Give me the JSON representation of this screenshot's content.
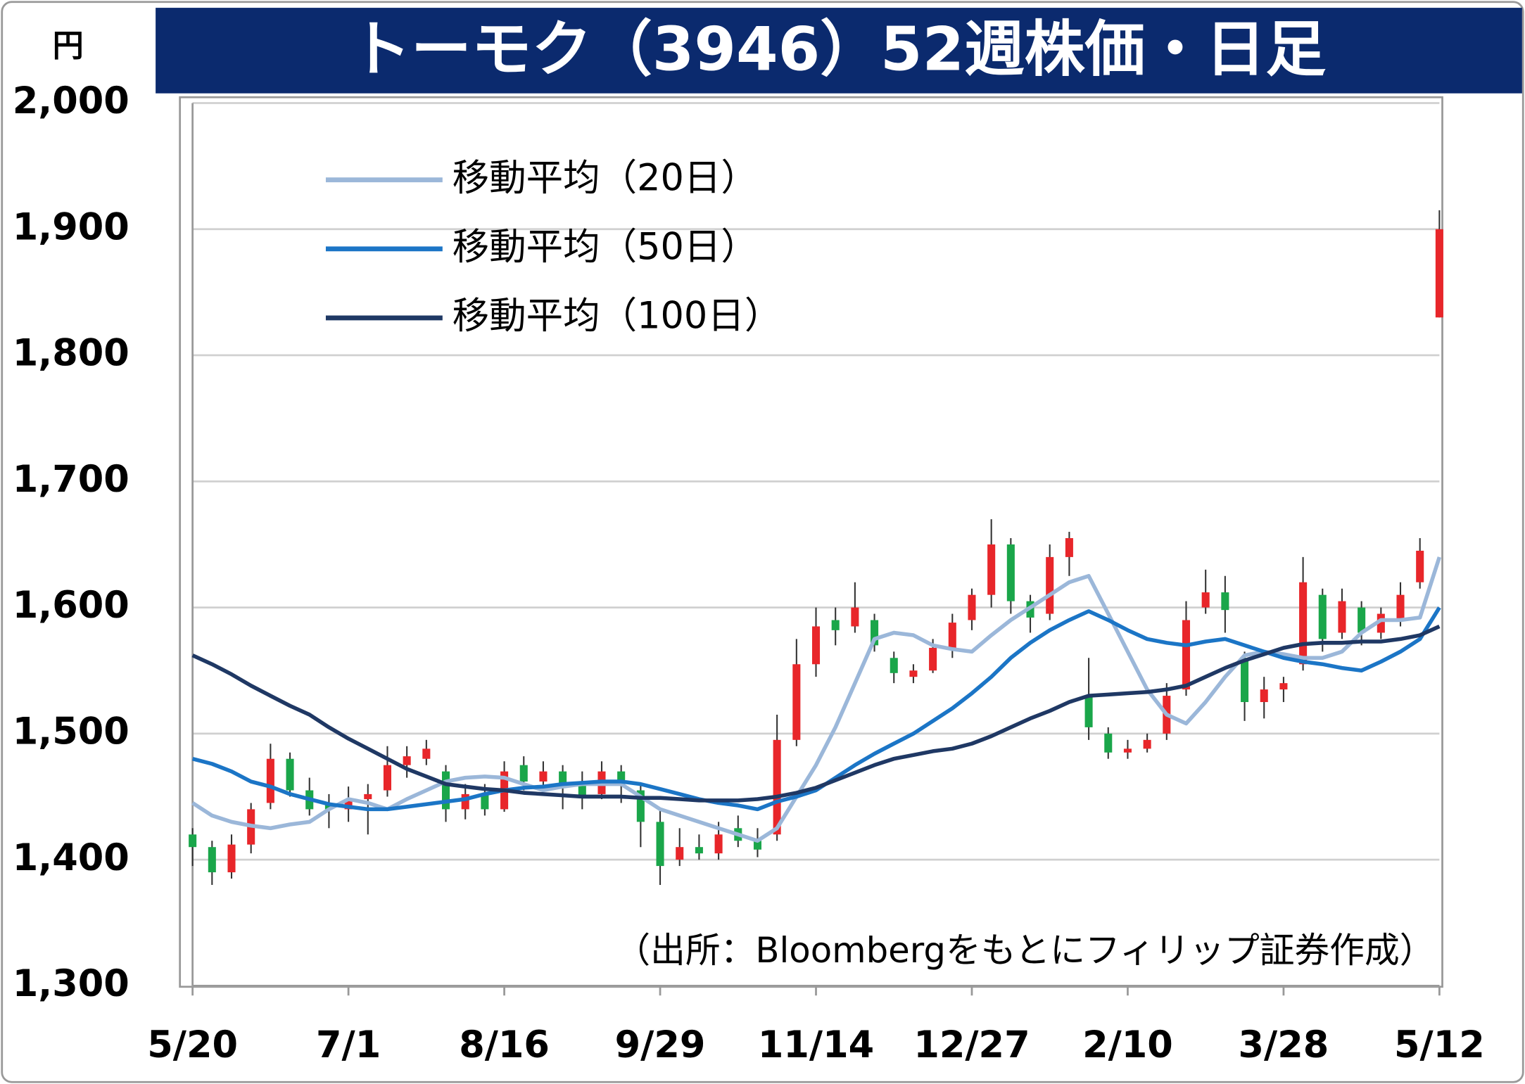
{
  "chart_data": {
    "type": "candlestick",
    "title": "トーモク（3946）52週株価・日足",
    "y_unit": "円",
    "source": "（出所：Bloombergをもとにフィリップ証券作成）",
    "categories": [
      "5/20",
      null,
      null,
      null,
      null,
      null,
      null,
      null,
      "7/1",
      null,
      null,
      null,
      null,
      null,
      null,
      null,
      "8/16",
      null,
      null,
      null,
      null,
      null,
      null,
      null,
      "9/29",
      null,
      null,
      null,
      null,
      null,
      null,
      null,
      "11/14",
      null,
      null,
      null,
      null,
      null,
      null,
      null,
      "12/27",
      null,
      null,
      null,
      null,
      null,
      null,
      null,
      "2/10",
      null,
      null,
      null,
      null,
      null,
      null,
      null,
      "3/28",
      null,
      null,
      null,
      null,
      null,
      null,
      null,
      "5/12"
    ],
    "open": [
      1420,
      1410,
      1390,
      1412,
      1445,
      1480,
      1455,
      1445,
      1440,
      1448,
      1455,
      1475,
      1480,
      1470,
      1440,
      1452,
      1440,
      1475,
      1462,
      1470,
      1460,
      1452,
      1470,
      1455,
      1430,
      1400,
      1410,
      1405,
      1425,
      1415,
      1420,
      1495,
      1555,
      1590,
      1585,
      1590,
      1560,
      1545,
      1550,
      1568,
      1590,
      1610,
      1650,
      1605,
      1595,
      1640,
      1530,
      1500,
      1485,
      1488,
      1500,
      1535,
      1600,
      1612,
      1560,
      1525,
      1535,
      1555,
      1610,
      1580,
      1600,
      1580,
      1590,
      1620,
      1830
    ],
    "high": [
      1425,
      1415,
      1420,
      1445,
      1492,
      1485,
      1465,
      1452,
      1458,
      1460,
      1490,
      1490,
      1495,
      1475,
      1460,
      1460,
      1478,
      1482,
      1478,
      1475,
      1470,
      1478,
      1475,
      1460,
      1440,
      1425,
      1420,
      1430,
      1435,
      1425,
      1515,
      1575,
      1600,
      1600,
      1620,
      1595,
      1565,
      1555,
      1575,
      1595,
      1615,
      1670,
      1655,
      1610,
      1650,
      1660,
      1560,
      1505,
      1495,
      1500,
      1540,
      1605,
      1630,
      1625,
      1565,
      1545,
      1545,
      1640,
      1615,
      1615,
      1605,
      1600,
      1620,
      1655,
      1915
    ],
    "low": [
      1395,
      1380,
      1385,
      1405,
      1440,
      1450,
      1435,
      1425,
      1430,
      1420,
      1450,
      1465,
      1475,
      1430,
      1432,
      1435,
      1438,
      1455,
      1455,
      1440,
      1440,
      1448,
      1445,
      1410,
      1380,
      1395,
      1400,
      1400,
      1410,
      1402,
      1415,
      1490,
      1545,
      1570,
      1580,
      1565,
      1540,
      1540,
      1548,
      1560,
      1582,
      1600,
      1595,
      1580,
      1590,
      1625,
      1495,
      1480,
      1480,
      1485,
      1495,
      1530,
      1595,
      1580,
      1510,
      1512,
      1525,
      1550,
      1565,
      1575,
      1570,
      1575,
      1585,
      1615,
      1830
    ],
    "close": [
      1410,
      1390,
      1412,
      1440,
      1480,
      1455,
      1440,
      1440,
      1448,
      1452,
      1475,
      1482,
      1488,
      1440,
      1452,
      1440,
      1470,
      1462,
      1470,
      1458,
      1450,
      1470,
      1460,
      1430,
      1395,
      1410,
      1405,
      1420,
      1415,
      1408,
      1495,
      1555,
      1585,
      1582,
      1600,
      1570,
      1548,
      1550,
      1568,
      1588,
      1610,
      1650,
      1605,
      1592,
      1640,
      1655,
      1505,
      1485,
      1488,
      1495,
      1530,
      1590,
      1612,
      1598,
      1525,
      1535,
      1540,
      1620,
      1575,
      1605,
      1580,
      1595,
      1610,
      1645,
      1900
    ],
    "up_color": "#e8262a",
    "down_color": "#1aa64a",
    "series": [
      {
        "name": "移動平均（20日）",
        "color": "#9bb7d9",
        "values": [
          1445,
          1435,
          1430,
          1427,
          1425,
          1428,
          1430,
          1440,
          1448,
          1445,
          1440,
          1448,
          1455,
          1462,
          1465,
          1466,
          1465,
          1460,
          1455,
          1458,
          1460,
          1460,
          1460,
          1450,
          1440,
          1435,
          1430,
          1425,
          1420,
          1415,
          1425,
          1450,
          1475,
          1505,
          1540,
          1575,
          1580,
          1578,
          1570,
          1567,
          1565,
          1578,
          1590,
          1600,
          1610,
          1620,
          1625,
          1595,
          1565,
          1535,
          1515,
          1508,
          1525,
          1545,
          1562,
          1565,
          1563,
          1560,
          1560,
          1565,
          1580,
          1590,
          1590,
          1592,
          1640
        ]
      },
      {
        "name": "移動平均（50日）",
        "color": "#1b75c6",
        "values": [
          1480,
          1476,
          1470,
          1462,
          1458,
          1452,
          1448,
          1444,
          1442,
          1440,
          1440,
          1442,
          1444,
          1446,
          1448,
          1452,
          1455,
          1457,
          1458,
          1460,
          1461,
          1462,
          1462,
          1460,
          1456,
          1452,
          1448,
          1445,
          1443,
          1440,
          1446,
          1450,
          1455,
          1465,
          1475,
          1484,
          1492,
          1500,
          1510,
          1520,
          1532,
          1545,
          1560,
          1572,
          1582,
          1590,
          1597,
          1590,
          1582,
          1575,
          1572,
          1570,
          1573,
          1575,
          1570,
          1565,
          1560,
          1557,
          1555,
          1552,
          1550,
          1557,
          1565,
          1575,
          1600
        ]
      },
      {
        "name": "移動平均（100日）",
        "color": "#1f3864",
        "values": [
          1562,
          1555,
          1547,
          1538,
          1530,
          1522,
          1515,
          1505,
          1496,
          1488,
          1480,
          1472,
          1466,
          1460,
          1458,
          1456,
          1455,
          1453,
          1452,
          1451,
          1450,
          1450,
          1450,
          1449,
          1449,
          1448,
          1447,
          1447,
          1447,
          1448,
          1450,
          1453,
          1457,
          1463,
          1469,
          1475,
          1480,
          1483,
          1486,
          1488,
          1492,
          1498,
          1505,
          1512,
          1518,
          1525,
          1530,
          1531,
          1532,
          1533,
          1535,
          1538,
          1545,
          1552,
          1558,
          1563,
          1568,
          1571,
          1572,
          1572,
          1573,
          1573,
          1575,
          1578,
          1585
        ]
      }
    ],
    "ylim": [
      1300,
      2000
    ],
    "yticks": [
      {
        "value": 1300,
        "label": "1,300"
      },
      {
        "value": 1400,
        "label": "1,400"
      },
      {
        "value": 1500,
        "label": "1,500"
      },
      {
        "value": 1600,
        "label": "1,600"
      },
      {
        "value": 1700,
        "label": "1,700"
      },
      {
        "value": 1800,
        "label": "1,800"
      },
      {
        "value": 1900,
        "label": "1,900"
      },
      {
        "value": 2000,
        "label": "2,000"
      }
    ],
    "grid": true
  }
}
